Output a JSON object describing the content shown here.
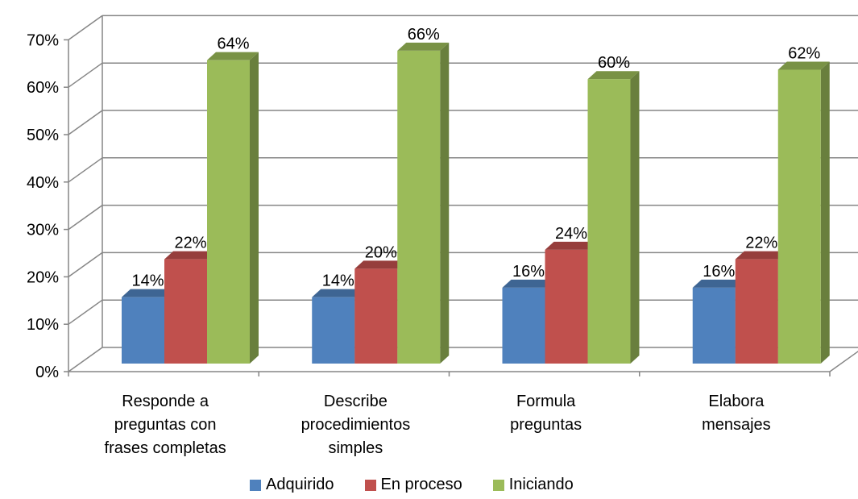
{
  "chart_data": {
    "type": "bar",
    "categories": [
      [
        "Responde a",
        "preguntas con",
        "frases completas"
      ],
      [
        "Describe",
        "procedimientos",
        "simples"
      ],
      [
        "Formula",
        "preguntas"
      ],
      [
        "Elabora",
        "mensajes"
      ]
    ],
    "series": [
      {
        "name": "Adquirido",
        "values": [
          14,
          14,
          16,
          16
        ],
        "color": "#4F81BD"
      },
      {
        "name": "En proceso",
        "values": [
          22,
          20,
          24,
          22
        ],
        "color": "#C0504D"
      },
      {
        "name": "Iniciando",
        "values": [
          64,
          66,
          60,
          62
        ],
        "color": "#9BBB59"
      }
    ],
    "data_labels": [
      [
        "14%",
        "22%",
        "64%"
      ],
      [
        "14%",
        "20%",
        "66%"
      ],
      [
        "16%",
        "24%",
        "60%"
      ],
      [
        "16%",
        "22%",
        "62%"
      ]
    ],
    "y_ticks": [
      "0%",
      "10%",
      "20%",
      "30%",
      "40%",
      "50%",
      "60%",
      "70%"
    ],
    "ylim": [
      0,
      70
    ],
    "grid": true,
    "legend_position": "bottom"
  }
}
